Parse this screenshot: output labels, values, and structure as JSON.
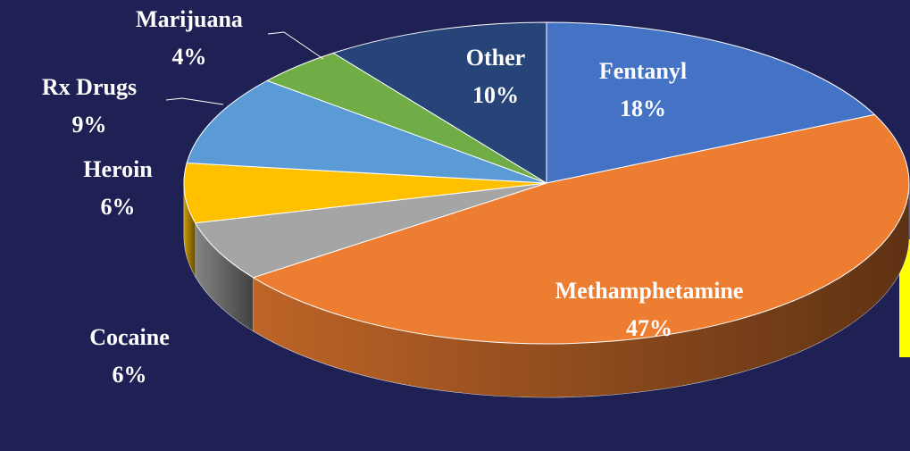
{
  "chart_data": {
    "type": "pie",
    "categories": [
      "Fentanyl",
      "Methamphetamine",
      "Cocaine",
      "Heroin",
      "Rx Drugs",
      "Marijuana",
      "Other"
    ],
    "values": [
      18,
      47,
      6,
      6,
      9,
      4,
      10
    ],
    "value_labels": [
      "18%",
      "47%",
      "6%",
      "6%",
      "9%",
      "4%",
      "10%"
    ],
    "colors": [
      "#4472c4",
      "#ed7d31",
      "#a5a5a5",
      "#ffc000",
      "#5b9bd5",
      "#70ad47",
      "#264478"
    ]
  }
}
